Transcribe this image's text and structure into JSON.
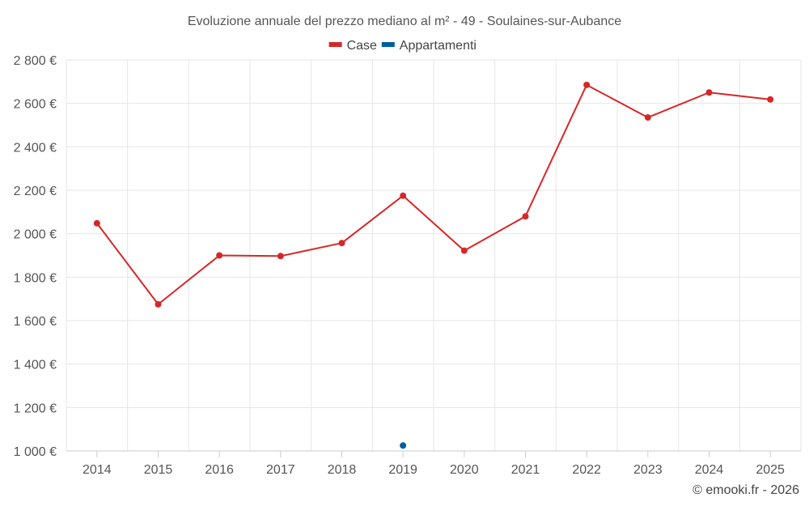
{
  "chart_data": {
    "type": "line",
    "title": "Evoluzione annuale del prezzo mediano al m² - 49 - Soulaines-sur-Aubance",
    "xlabel": "",
    "ylabel": "",
    "categories": [
      "2014",
      "2015",
      "2016",
      "2017",
      "2018",
      "2019",
      "2020",
      "2021",
      "2022",
      "2023",
      "2024",
      "2025"
    ],
    "ylim": [
      1000,
      2800
    ],
    "yticks": [
      1000,
      1200,
      1400,
      1600,
      1800,
      2000,
      2200,
      2400,
      2600,
      2800
    ],
    "ytick_labels": [
      "1 000 €",
      "1 200 €",
      "1 400 €",
      "1 600 €",
      "1 800 €",
      "2 000 €",
      "2 200 €",
      "2 400 €",
      "2 600 €",
      "2 800 €"
    ],
    "grid": true,
    "legend_position": "top-center",
    "series": [
      {
        "name": "Case",
        "color": "#d62728",
        "values": [
          2048,
          1675,
          1900,
          1897,
          1957,
          2175,
          1922,
          2080,
          2685,
          2535,
          2650,
          2618
        ]
      },
      {
        "name": "Appartamenti",
        "color": "#005f9e",
        "values": [
          null,
          null,
          null,
          null,
          null,
          1025,
          null,
          null,
          null,
          null,
          null,
          null
        ]
      }
    ]
  },
  "credit": "© emooki.fr - 2026"
}
